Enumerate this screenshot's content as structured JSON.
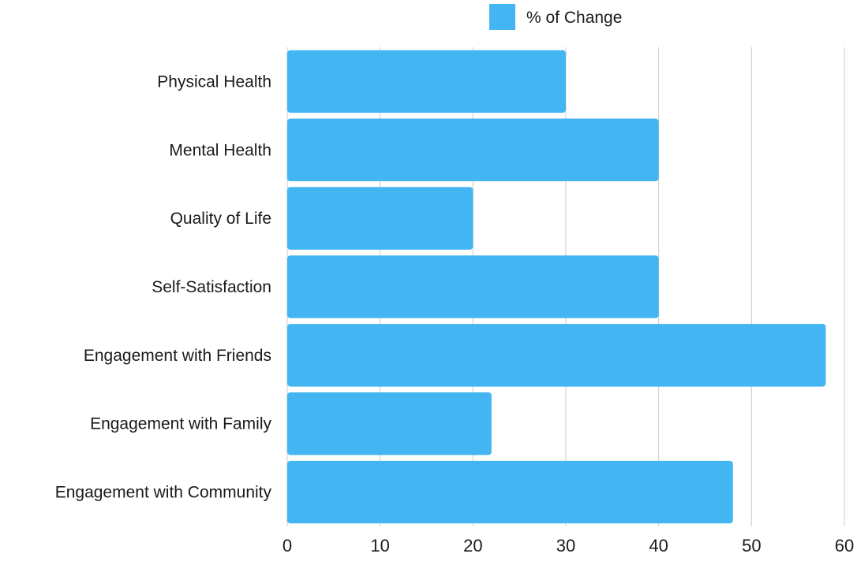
{
  "chart_data": {
    "type": "bar",
    "orientation": "horizontal",
    "categories": [
      "Physical Health",
      "Mental Health",
      "Quality of Life",
      "Self-Satisfaction",
      "Engagement with Friends",
      "Engagement with Family",
      "Engagement with Community"
    ],
    "series": [
      {
        "name": "% of Change",
        "color": "#42b5f2",
        "values": [
          30,
          40,
          20,
          40,
          58,
          22,
          48
        ]
      }
    ],
    "xlim": [
      0,
      60
    ],
    "xticks": [
      0,
      10,
      20,
      30,
      40,
      50,
      60
    ],
    "grid": "vertical",
    "legend": "top-center"
  }
}
